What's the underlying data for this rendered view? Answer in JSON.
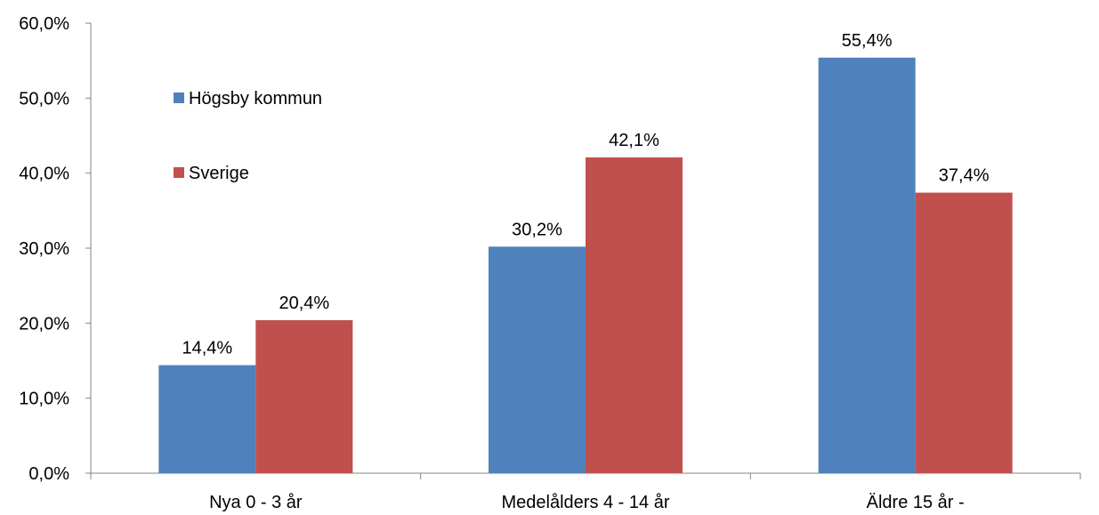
{
  "chart_data": {
    "type": "bar",
    "categories": [
      "Nya 0 - 3 år",
      "Medelålders 4 - 14 år",
      "Äldre 15 år -"
    ],
    "series": [
      {
        "name": "Högsby kommun",
        "values": [
          14.4,
          30.2,
          55.4
        ],
        "labels": [
          "14,4%",
          "30,2%",
          "55,4%"
        ],
        "color": "#4F81BD"
      },
      {
        "name": "Sverige",
        "values": [
          20.4,
          42.1,
          37.4
        ],
        "labels": [
          "20,4%",
          "42,1%",
          "37,4%"
        ],
        "color": "#C0504D"
      }
    ],
    "ylim": [
      0,
      60
    ],
    "yticks": [
      0,
      10,
      20,
      30,
      40,
      50,
      60
    ],
    "ytick_labels": [
      "0,0%",
      "10,0%",
      "20,0%",
      "30,0%",
      "40,0%",
      "50,0%",
      "60,0%"
    ],
    "grid": false,
    "legend_position": "top-left",
    "title": "",
    "xlabel": "",
    "ylabel": ""
  }
}
